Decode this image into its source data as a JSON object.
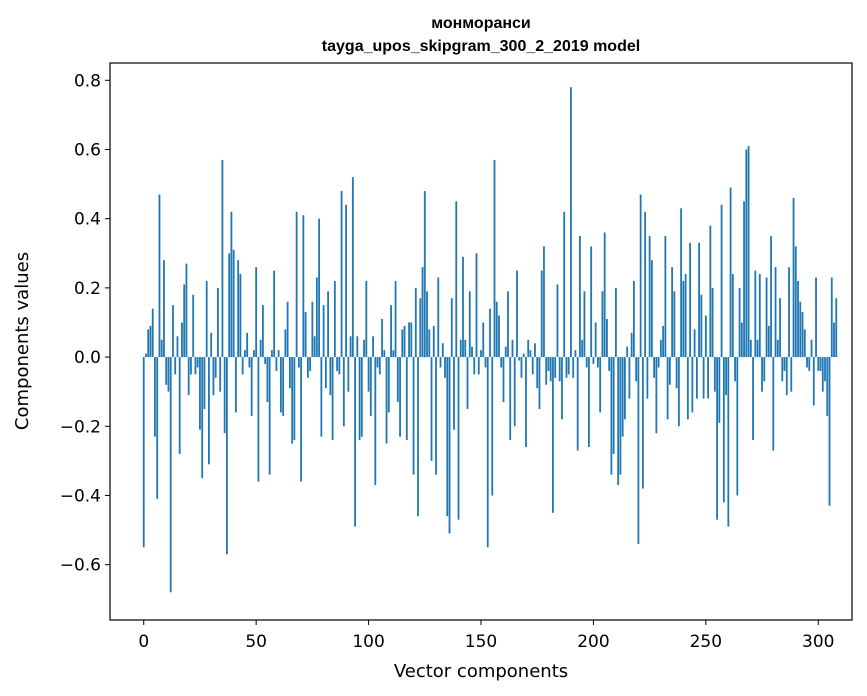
{
  "chart_data": {
    "type": "bar",
    "title": "монморанси",
    "subtitle": "tayga_upos_skipgram_300_2_2019 model",
    "xlabel": "Vector components",
    "ylabel": "Components values",
    "xlim": [
      -15,
      315
    ],
    "ylim": [
      -0.76,
      0.85
    ],
    "xticks": [
      0,
      50,
      100,
      150,
      200,
      250,
      300
    ],
    "xtick_labels": [
      "0",
      "50",
      "100",
      "150",
      "200",
      "250",
      "300"
    ],
    "yticks": [
      -0.6,
      -0.4,
      -0.2,
      0.0,
      0.2,
      0.4,
      0.6,
      0.8
    ],
    "ytick_labels": [
      "−0.6",
      "−0.4",
      "−0.2",
      "0.0",
      "0.2",
      "0.4",
      "0.6",
      "0.8"
    ],
    "bar_color": "#1f77b4",
    "grid": false,
    "values": [
      -0.55,
      0.01,
      0.08,
      0.09,
      0.14,
      -0.23,
      -0.41,
      0.47,
      0.05,
      0.28,
      -0.08,
      -0.1,
      -0.68,
      0.15,
      -0.05,
      0.06,
      -0.28,
      0.1,
      0.21,
      0.27,
      -0.11,
      -0.05,
      0.18,
      -0.05,
      -0.03,
      -0.21,
      -0.35,
      -0.15,
      0.22,
      -0.31,
      0.07,
      -0.11,
      -0.06,
      0.2,
      -0.1,
      0.57,
      -0.22,
      -0.57,
      0.3,
      0.42,
      0.31,
      -0.16,
      0.28,
      0.24,
      -0.05,
      0.02,
      0.07,
      -0.03,
      -0.17,
      0.02,
      0.26,
      -0.36,
      0.05,
      0.15,
      -0.02,
      -0.13,
      -0.34,
      0.02,
      0.25,
      -0.04,
      0.02,
      -0.16,
      -0.17,
      0.08,
      0.16,
      -0.09,
      -0.25,
      -0.24,
      0.42,
      -0.03,
      -0.36,
      0.41,
      0.13,
      -0.06,
      -0.04,
      0.16,
      0.06,
      0.23,
      0.4,
      -0.23,
      0.15,
      -0.09,
      0.19,
      -0.11,
      -0.24,
      0.22,
      -0.04,
      -0.05,
      0.48,
      -0.2,
      0.44,
      -0.1,
      0.06,
      0.52,
      -0.49,
      0.06,
      -0.24,
      -0.23,
      0.05,
      0.22,
      -0.1,
      -0.17,
      0.06,
      -0.37,
      -0.03,
      -0.05,
      0.11,
      0.02,
      -0.25,
      -0.16,
      0.15,
      0.02,
      0.22,
      -0.13,
      -0.23,
      0.08,
      0.09,
      -0.24,
      0.1,
      0.1,
      -0.34,
      0.2,
      -0.46,
      0.17,
      0.26,
      0.48,
      0.19,
      0.08,
      -0.3,
      0.09,
      -0.34,
      0.23,
      -0.03,
      0.04,
      -0.06,
      -0.46,
      -0.51,
      0.17,
      -0.21,
      0.45,
      -0.47,
      0.05,
      0.29,
      0.05,
      -0.15,
      0.19,
      0.03,
      -0.05,
      0.3,
      -0.05,
      0.02,
      0.1,
      -0.03,
      -0.55,
      0.14,
      -0.4,
      0.57,
      0.16,
      0.12,
      -0.03,
      -0.13,
      0.03,
      0.19,
      -0.24,
      0.05,
      -0.2,
      0.25,
      -0.01,
      -0.06,
      0.01,
      -0.26,
      0.05,
      0.02,
      -0.05,
      0.04,
      -0.09,
      -0.15,
      0.25,
      0.32,
      -0.08,
      -0.04,
      -0.07,
      -0.45,
      -0.06,
      0.21,
      -0.07,
      -0.18,
      0.42,
      -0.06,
      -0.05,
      0.78,
      -0.06,
      0.02,
      -0.27,
      0.35,
      0.05,
      0.19,
      -0.03,
      -0.26,
      0.32,
      -0.02,
      0.1,
      -0.03,
      -0.16,
      0.19,
      0.36,
      0.11,
      -0.04,
      -0.34,
      -0.28,
      0.2,
      -0.37,
      -0.34,
      -0.23,
      -0.18,
      0.03,
      -0.12,
      0.07,
      0.22,
      -0.07,
      -0.54,
      0.47,
      -0.38,
      0.42,
      -0.12,
      0.35,
      0.28,
      -0.06,
      -0.22,
      -0.03,
      0.05,
      0.09,
      0.35,
      -0.18,
      -0.08,
      0.26,
      0.19,
      -0.09,
      -0.2,
      0.43,
      0.22,
      0.24,
      -0.18,
      0.33,
      -0.16,
      0.08,
      -0.12,
      0.33,
      0.18,
      -0.12,
      0.12,
      -0.12,
      0.38,
      0.2,
      -0.1,
      -0.47,
      -0.19,
      0.44,
      -0.42,
      -0.11,
      -0.49,
      0.49,
      0.24,
      -0.07,
      -0.4,
      0.2,
      0.1,
      0.45,
      0.6,
      0.61,
      0.05,
      -0.24,
      0.25,
      0.05,
      0.24,
      -0.1,
      -0.07,
      0.23,
      0.09,
      0.35,
      -0.27,
      0.26,
      0.05,
      0.17,
      -0.07,
      -0.04,
      -0.11,
      0.26,
      -0.1,
      0.46,
      0.32,
      0.22,
      0.16,
      0.13,
      0.08,
      -0.03,
      -0.04,
      0.05,
      -0.14,
      0.23,
      -0.04,
      -0.04,
      -0.1,
      -0.07,
      -0.17,
      -0.43,
      0.23,
      0.1,
      0.17
    ]
  }
}
